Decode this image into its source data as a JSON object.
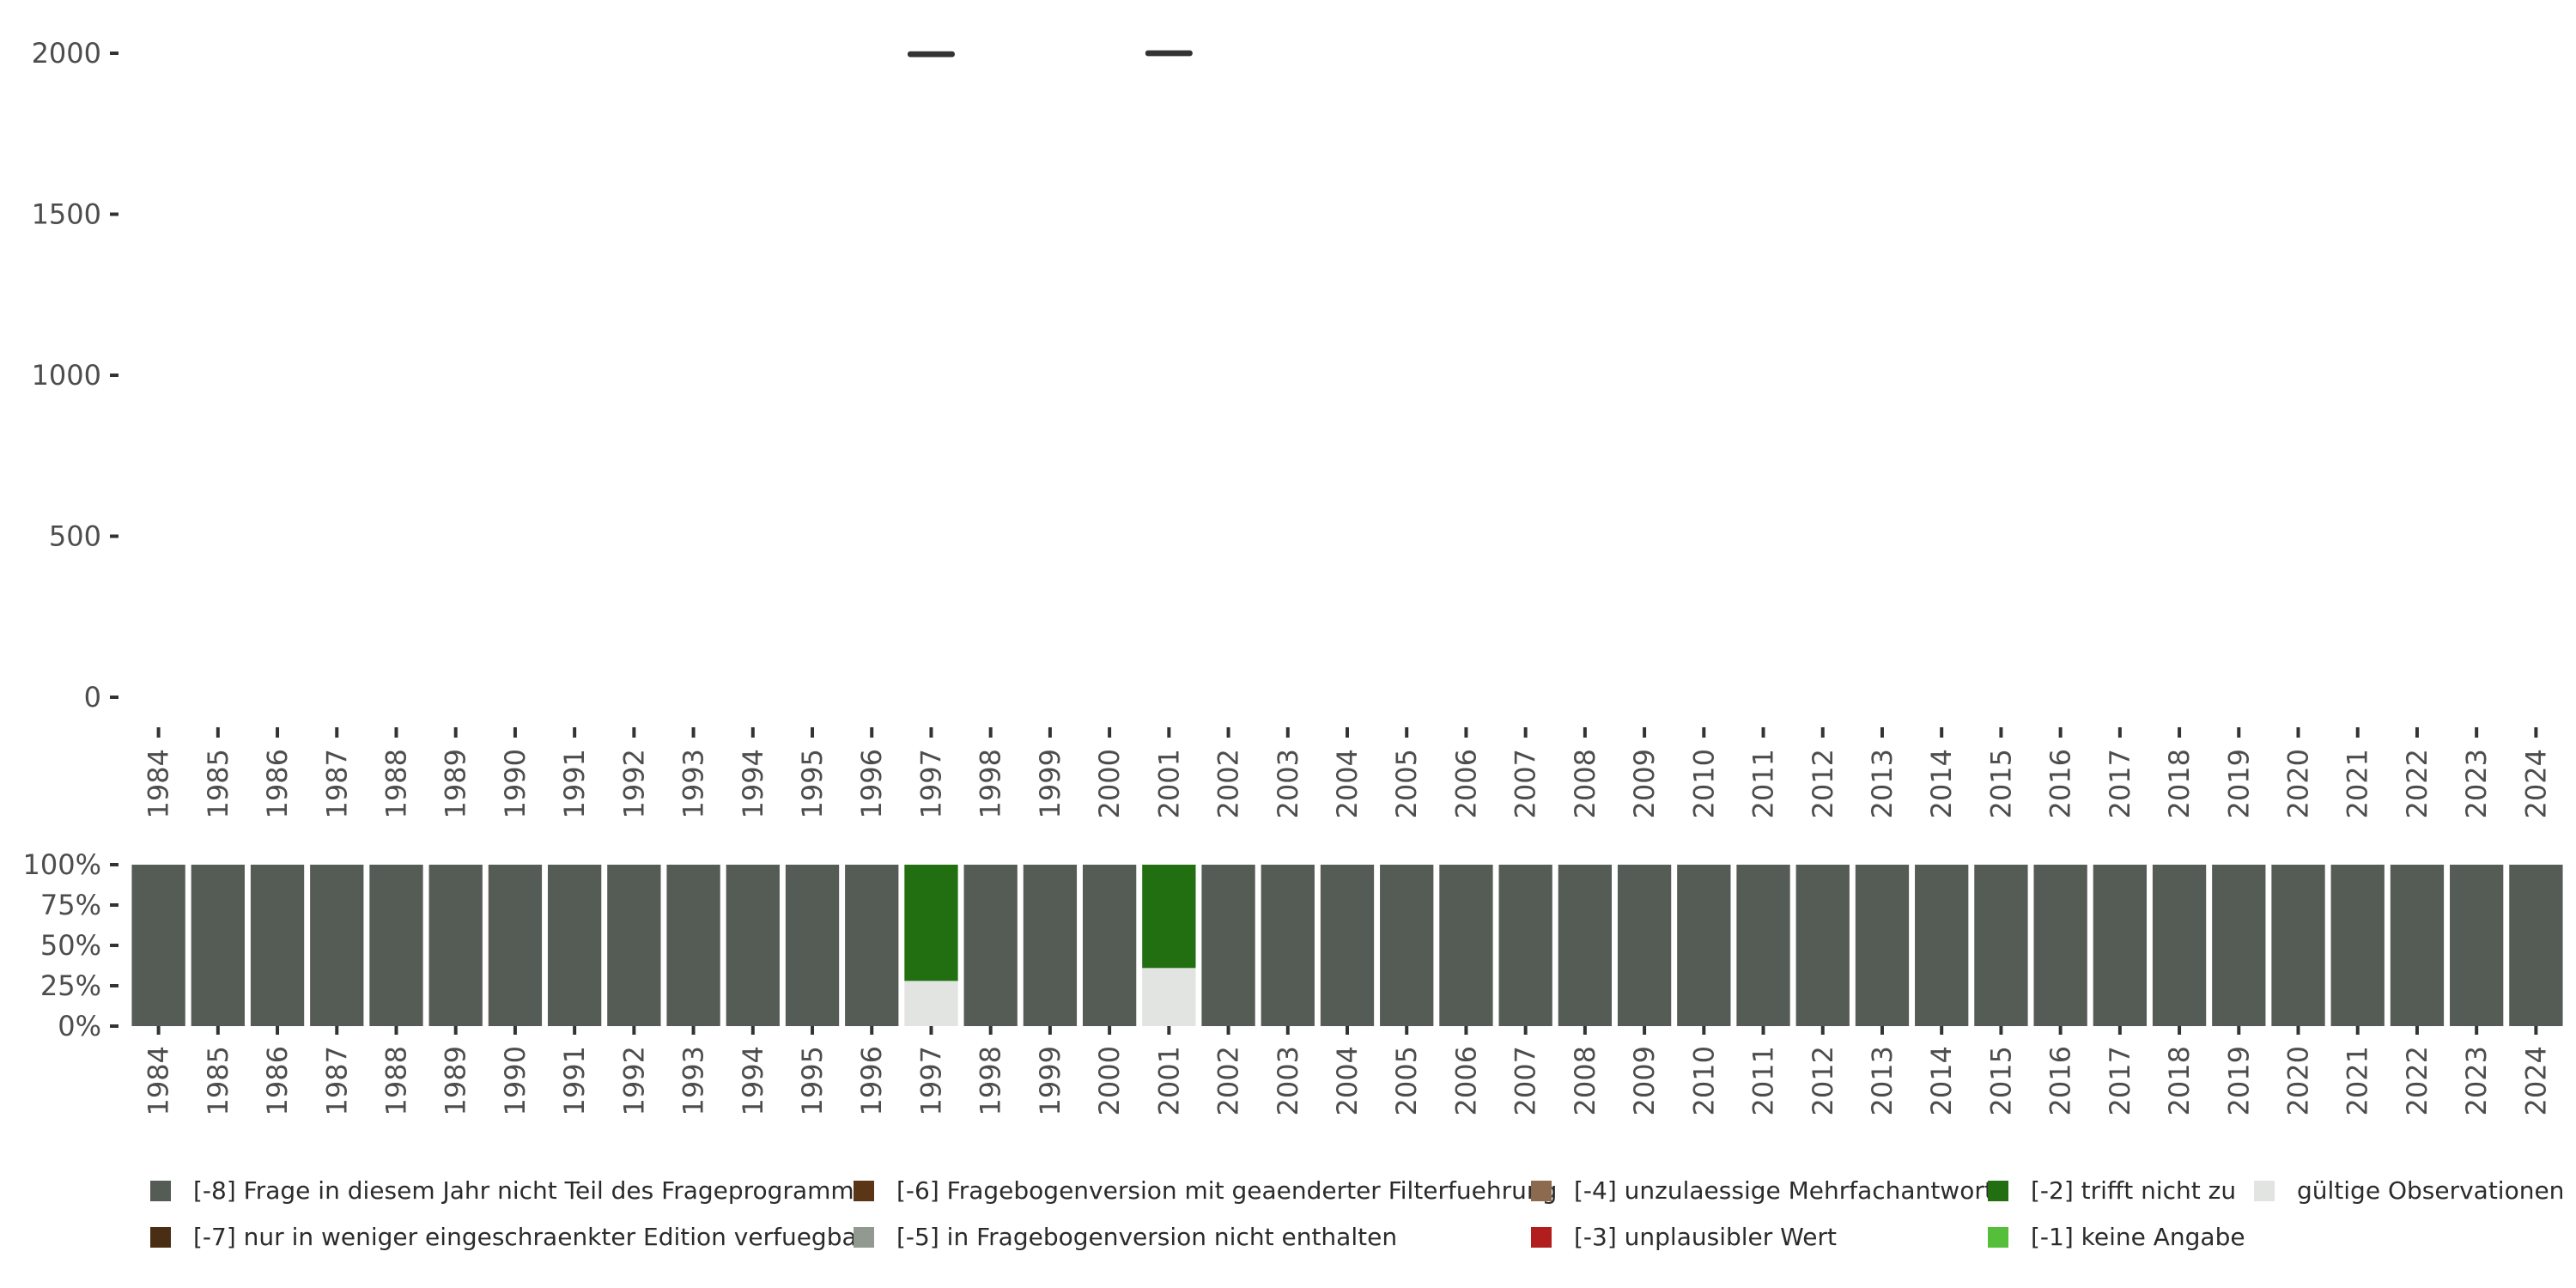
{
  "chart_data": [
    {
      "type": "box",
      "title": "",
      "xlabel": "",
      "ylabel": "",
      "ylim": [
        0,
        2000
      ],
      "yticks": [
        "0",
        "500",
        "1000",
        "1500",
        "2000"
      ],
      "categories": [
        "1984",
        "1985",
        "1986",
        "1987",
        "1988",
        "1989",
        "1990",
        "1991",
        "1992",
        "1993",
        "1994",
        "1995",
        "1996",
        "1997",
        "1998",
        "1999",
        "2000",
        "2001",
        "2002",
        "2003",
        "2004",
        "2005",
        "2006",
        "2007",
        "2008",
        "2009",
        "2010",
        "2011",
        "2012",
        "2013",
        "2014",
        "2015",
        "2016",
        "2017",
        "2018",
        "2019",
        "2020",
        "2021",
        "2022",
        "2023",
        "2024"
      ],
      "boxes": [
        {
          "year": "1997",
          "min": 1995,
          "q1": 1996,
          "median": 1997,
          "q3": 1998,
          "max": 1999
        },
        {
          "year": "2001",
          "min": 1998,
          "q1": 1999,
          "median": 2000,
          "q3": 2001,
          "max": 2002
        }
      ]
    },
    {
      "type": "bar",
      "stacked": true,
      "percent": true,
      "ylim": [
        0,
        100
      ],
      "yticks": [
        "0%",
        "25%",
        "50%",
        "75%",
        "100%"
      ],
      "categories": [
        "1984",
        "1985",
        "1986",
        "1987",
        "1988",
        "1989",
        "1990",
        "1991",
        "1992",
        "1993",
        "1994",
        "1995",
        "1996",
        "1997",
        "1998",
        "1999",
        "2000",
        "2001",
        "2002",
        "2003",
        "2004",
        "2005",
        "2006",
        "2007",
        "2008",
        "2009",
        "2010",
        "2011",
        "2012",
        "2013",
        "2014",
        "2015",
        "2016",
        "2017",
        "2018",
        "2019",
        "2020",
        "2021",
        "2022",
        "2023",
        "2024"
      ],
      "series": [
        {
          "name": "gültige Observationen",
          "color": "#e1e4e0",
          "values": [
            0,
            0,
            0,
            0,
            0,
            0,
            0,
            0,
            0,
            0,
            0,
            0,
            0,
            28,
            0,
            0,
            0,
            36,
            0,
            0,
            0,
            0,
            0,
            0,
            0,
            0,
            0,
            0,
            0,
            0,
            0,
            0,
            0,
            0,
            0,
            0,
            0,
            0,
            0,
            0,
            0
          ]
        },
        {
          "name": "[-2] trifft nicht zu",
          "color": "#226f12",
          "values": [
            0,
            0,
            0,
            0,
            0,
            0,
            0,
            0,
            0,
            0,
            0,
            0,
            0,
            72,
            0,
            0,
            0,
            64,
            0,
            0,
            0,
            0,
            0,
            0,
            0,
            0,
            0,
            0,
            0,
            0,
            0,
            0,
            0,
            0,
            0,
            0,
            0,
            0,
            0,
            0,
            0
          ]
        },
        {
          "name": "[-8] Frage in diesem Jahr nicht Teil des Frageprogramms",
          "color": "#555b55",
          "values": [
            100,
            100,
            100,
            100,
            100,
            100,
            100,
            100,
            100,
            100,
            100,
            100,
            100,
            0,
            100,
            100,
            100,
            0,
            100,
            100,
            100,
            100,
            100,
            100,
            100,
            100,
            100,
            100,
            100,
            100,
            100,
            100,
            100,
            100,
            100,
            100,
            100,
            100,
            100,
            100,
            100
          ]
        }
      ]
    }
  ],
  "legend": {
    "items": [
      {
        "label": "[-8] Frage in diesem Jahr nicht Teil des Frageprogramms",
        "color": "#555b55"
      },
      {
        "label": "[-7] nur in weniger eingeschraenkter Edition verfuegbar",
        "color": "#4a2e14"
      },
      {
        "label": "[-6] Fragebogenversion mit geaenderter Filterfuehrung",
        "color": "#5a3617"
      },
      {
        "label": "[-5] in Fragebogenversion nicht enthalten",
        "color": "#919991"
      },
      {
        "label": "[-4] unzulaessige Mehrfachantwort",
        "color": "#8c6a50"
      },
      {
        "label": "[-3] unplausibler Wert",
        "color": "#b21e1e"
      },
      {
        "label": "[-2] trifft nicht zu",
        "color": "#226f12"
      },
      {
        "label": "[-1] keine Angabe",
        "color": "#55be3a"
      },
      {
        "label": "gültige Observationen",
        "color": "#e1e4e0"
      }
    ]
  }
}
